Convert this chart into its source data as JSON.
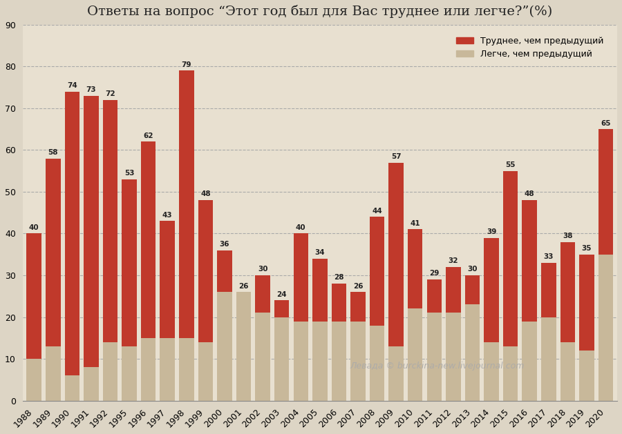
{
  "years": [
    "1988",
    "1989",
    "1990",
    "1991",
    "1992",
    "1995",
    "1996",
    "1997",
    "1998",
    "1999",
    "2000",
    "2001",
    "2002",
    "2003",
    "2004",
    "2005",
    "2006",
    "2007",
    "2008",
    "2009",
    "2010",
    "2011",
    "2012",
    "2013",
    "2014",
    "2015",
    "2016",
    "2017",
    "2018",
    "2019",
    "2020"
  ],
  "harder": [
    40,
    58,
    74,
    73,
    72,
    53,
    62,
    43,
    79,
    48,
    36,
    26,
    30,
    24,
    40,
    34,
    28,
    26,
    44,
    57,
    41,
    29,
    32,
    30,
    39,
    55,
    48,
    33,
    38,
    35,
    65
  ],
  "easier": [
    10,
    13,
    6,
    8,
    14,
    13,
    15,
    15,
    15,
    14,
    26,
    26,
    21,
    20,
    19,
    19,
    19,
    19,
    18,
    13,
    22,
    21,
    21,
    23,
    14,
    13,
    19,
    20,
    14,
    12,
    35
  ],
  "harder_color": "#c0392b",
  "easier_color": "#c8b89a",
  "bg_color": "#ddd5c5",
  "plot_bg_color": "#e8e0d0",
  "title": "Ответы на вопрос “Этот год был для Вас труднее или легче?”(%)",
  "legend_harder": "Труднее, чем предыдущий",
  "legend_easier": "Легче, чем предыдущий",
  "watermark": "Левада © burckina-new.livejournal.com",
  "ylim": [
    0,
    90
  ],
  "yticks": [
    0,
    10,
    20,
    30,
    40,
    50,
    60,
    70,
    80,
    90
  ]
}
